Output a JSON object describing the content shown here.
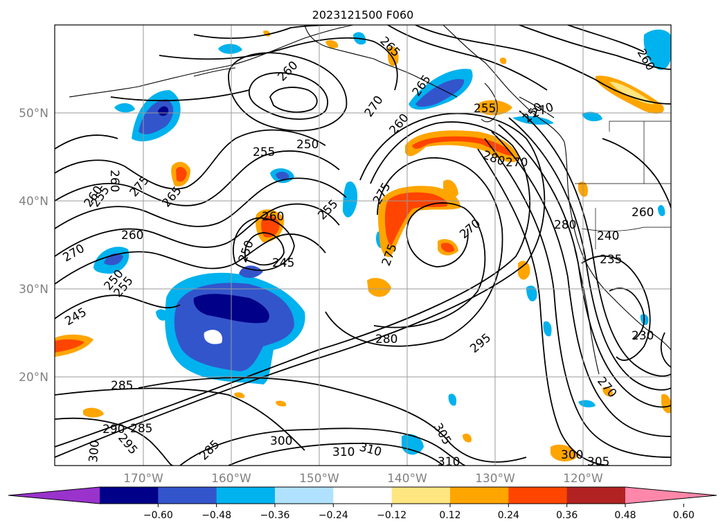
{
  "title": "2023121500 F060",
  "map": {
    "lat_labels": [
      "50°N",
      "40°N",
      "30°N",
      "20°N"
    ],
    "lon_labels": [
      "170°W",
      "160°W",
      "150°W",
      "140°W",
      "130°W",
      "120°W"
    ],
    "contour_labels": [
      "265",
      "260",
      "255",
      "250",
      "270",
      "265",
      "260",
      "255",
      "250",
      "270",
      "280",
      "260",
      "275",
      "265",
      "260",
      "255",
      "275",
      "270",
      "280",
      "270",
      "260",
      "250",
      "255",
      "245",
      "260",
      "275",
      "250",
      "255",
      "270",
      "245",
      "280",
      "240",
      "235",
      "295",
      "260",
      "230",
      "285",
      "290",
      "285",
      "300",
      "310",
      "310",
      "305",
      "310",
      "300",
      "305",
      "270",
      "300",
      "295",
      "285",
      "260"
    ]
  },
  "colorbar": {
    "ticks": [
      "-0.60",
      "-0.48",
      "-0.36",
      "-0.24",
      "-0.12",
      "0.12",
      "0.24",
      "0.36",
      "0.48",
      "0.60"
    ],
    "colors": [
      "#9933cc",
      "#000088",
      "#3355cc",
      "#00b2ee",
      "#b0e2ff",
      "#ffffff",
      "#ffe680",
      "#ffa500",
      "#ff4500",
      "#b22222",
      "#ff88aa"
    ]
  }
}
